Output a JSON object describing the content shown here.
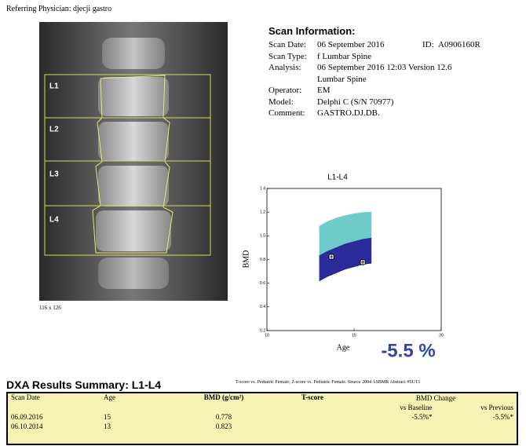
{
  "header": {
    "referring_physician": "Referring Physician: djecji gastro"
  },
  "image": {
    "labels": [
      "L1",
      "L2",
      "L3",
      "L4"
    ],
    "size_label": "116 x 126"
  },
  "scan_info": {
    "title": "Scan Information:",
    "id_label": "ID:",
    "id": "A0906160R",
    "rows": [
      [
        "Scan Date:",
        "06 September 2016"
      ],
      [
        "Scan Type:",
        "f Lumbar Spine"
      ],
      [
        "Analysis:",
        "06 September 2016 12:03 Version 12.6"
      ],
      [
        null,
        "Lumbar Spine"
      ],
      [
        "Operator:",
        "EM"
      ],
      [
        "Model:",
        "Delphi C (S/N 70977)"
      ],
      [
        "Comment:",
        "GASTRO.DJ.DB."
      ]
    ]
  },
  "chart_data": {
    "type": "band",
    "title": "L1-L4",
    "x_label": "Age",
    "y_label": "BMD",
    "xlim": [
      10,
      20
    ],
    "xticks": [
      10,
      15,
      20
    ],
    "ylim": [
      0.2,
      1.4
    ],
    "yticks": [
      0.2,
      0.4,
      0.6,
      0.8,
      {
        "value": 1.0,
        "label": "1.0"
      },
      1.2,
      1.4
    ],
    "x": [
      13,
      13.5,
      14,
      14.5,
      15,
      15.5,
      16
    ],
    "series": [
      {
        "color": "#6fcaca",
        "values": [
          1.08,
          1.12,
          1.15,
          1.17,
          1.185,
          1.195,
          1.2
        ]
      },
      {
        "color": "#2b2b9c",
        "values": [
          0.83,
          0.87,
          0.9,
          0.93,
          0.95,
          0.97,
          0.98
        ]
      },
      {
        "color": "#1e1e70",
        "values": [
          0.62,
          0.66,
          0.69,
          0.72,
          0.74,
          0.76,
          0.77
        ]
      }
    ],
    "points": {
      "x": [
        13.7,
        15.5
      ],
      "values": [
        0.823,
        0.778
      ]
    },
    "change_label": "-5.5 %"
  },
  "summary": {
    "title": "DXA Results Summary: L1-L4",
    "note": "T-score vs. Pediatric Female; Z-score vs. Pediatric Female. Source 2004 ASBMR Abstract #SU13",
    "columns": [
      "Scan Date",
      "Age",
      "BMD (g/cm²)",
      "T-score",
      "BMD Change",
      "vs Baseline",
      "vs Previous"
    ],
    "rows": [
      [
        "06.09.2016",
        "15",
        "0.778",
        null,
        "-5.5%*",
        "-5.5%*"
      ],
      [
        "06.10.2014",
        "13",
        "0.823",
        null,
        null,
        null
      ]
    ]
  }
}
